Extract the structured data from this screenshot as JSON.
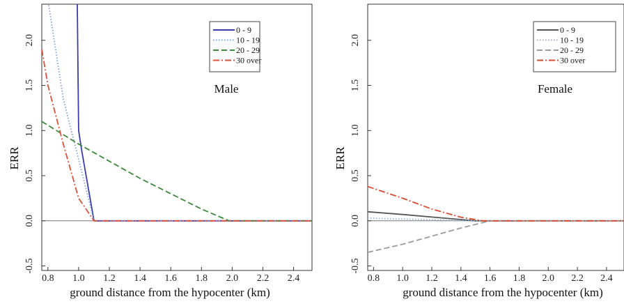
{
  "chart_data": [
    {
      "type": "line",
      "panel_label": "Male",
      "xlabel": "ground distance from the hypocenter (km)",
      "ylabel": "ERR",
      "xlim": [
        0.76,
        2.52
      ],
      "ylim": [
        -0.55,
        2.4
      ],
      "xticks": [
        0.8,
        1.0,
        1.2,
        1.4,
        1.6,
        1.8,
        2.0,
        2.2,
        2.4
      ],
      "xtick_labels": [
        "0.8",
        "1.0",
        "1.2",
        "1.4",
        "1.6",
        "1.8",
        "2.0",
        "2.2",
        "2.4"
      ],
      "yticks": [
        -0.5,
        0.0,
        0.5,
        1.0,
        1.5,
        2.0
      ],
      "ytick_labels": [
        "-0.5",
        "0.0",
        "0.5",
        "1.0",
        "1.5",
        "2.0"
      ],
      "legend_position": "top-right",
      "series": [
        {
          "name": "0 - 9",
          "color": "#3b3bb0",
          "dash": "solid",
          "x": [
            0.99,
            1.0,
            1.02,
            1.1,
            2.52
          ],
          "y": [
            2.6,
            1.0,
            0.78,
            0.0,
            0.0
          ]
        },
        {
          "name": "10 - 19",
          "color": "#7aa0d8",
          "dash": "dotted",
          "x": [
            0.8,
            0.9,
            1.0,
            1.1,
            2.52
          ],
          "y": [
            2.45,
            1.35,
            0.68,
            0.0,
            0.0
          ]
        },
        {
          "name": "20 - 29",
          "color": "#3a8a3a",
          "dash": "dashed",
          "x": [
            0.76,
            1.0,
            1.2,
            1.4,
            1.6,
            1.8,
            1.98,
            2.52
          ],
          "y": [
            1.1,
            0.85,
            0.66,
            0.47,
            0.3,
            0.13,
            0.0,
            0.0
          ]
        },
        {
          "name": "30 over",
          "color": "#e0503a",
          "dash": "dashdot",
          "x": [
            0.76,
            0.8,
            0.9,
            1.0,
            1.1,
            2.52
          ],
          "y": [
            1.9,
            1.5,
            0.85,
            0.25,
            0.0,
            0.0
          ]
        }
      ]
    },
    {
      "type": "line",
      "panel_label": "Female",
      "xlabel": "ground distance from the hypocenter (km)",
      "ylabel": "ERR",
      "xlim": [
        0.76,
        2.52
      ],
      "ylim": [
        -0.55,
        2.4
      ],
      "xticks": [
        0.8,
        1.0,
        1.2,
        1.4,
        1.6,
        1.8,
        2.0,
        2.2,
        2.4
      ],
      "xtick_labels": [
        "0.8",
        "1.0",
        "1.2",
        "1.4",
        "1.6",
        "1.8",
        "2.0",
        "2.2",
        "2.4"
      ],
      "yticks": [
        -0.5,
        0.0,
        0.5,
        1.0,
        1.5,
        2.0
      ],
      "ytick_labels": [
        "-0.5",
        "0.0",
        "0.5",
        "1.0",
        "1.5",
        "2.0"
      ],
      "legend_position": "top-right",
      "series": [
        {
          "name": "0 - 9",
          "color": "#555555",
          "dash": "solid",
          "x": [
            0.76,
            1.0,
            1.5,
            1.6,
            2.52
          ],
          "y": [
            0.1,
            0.07,
            0.0,
            0.0,
            0.0
          ]
        },
        {
          "name": "10 - 19",
          "color": "#9ab0cc",
          "dash": "dotted",
          "x": [
            0.76,
            1.0,
            1.5,
            1.6,
            2.52
          ],
          "y": [
            0.03,
            0.02,
            0.0,
            0.0,
            0.0
          ]
        },
        {
          "name": "20 - 29",
          "color": "#9a9a9a",
          "dash": "dashed",
          "x": [
            0.76,
            1.0,
            1.2,
            1.4,
            1.6,
            2.52
          ],
          "y": [
            -0.35,
            -0.26,
            -0.17,
            -0.08,
            0.0,
            0.0
          ]
        },
        {
          "name": "30 over",
          "color": "#d84a32",
          "dash": "dashdot",
          "x": [
            0.76,
            1.0,
            1.2,
            1.4,
            1.55,
            2.52
          ],
          "y": [
            0.38,
            0.25,
            0.13,
            0.04,
            0.0,
            0.0
          ]
        }
      ]
    }
  ]
}
